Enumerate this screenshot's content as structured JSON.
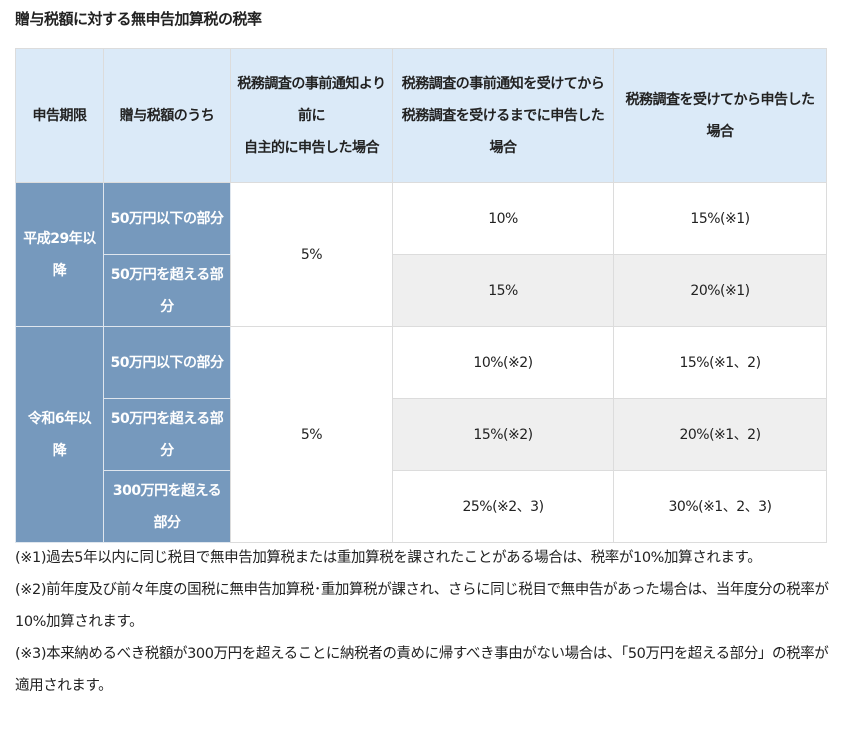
{
  "title": "贈与税額に対する無申告加算税の税率",
  "table": {
    "headers": [
      "申告期限",
      "贈与税額のうち",
      "税務調査の事前通知より前に\n自主的に申告した場合",
      "税務調査の事前通知を受けてから\n税務調査を受けるまでに申告した場合",
      "税務調査を受けてから申告した場合"
    ],
    "groups": [
      {
        "period": "平成29年以降",
        "voluntary": "5%",
        "rows": [
          {
            "portion": "50万円以下の部分",
            "after_notice": "10%",
            "after_audit": "15%(※1)"
          },
          {
            "portion": "50万円を超える部分",
            "after_notice": "15%",
            "after_audit": "20%(※1)"
          }
        ]
      },
      {
        "period": "令和6年以降",
        "voluntary": "5%",
        "rows": [
          {
            "portion": "50万円以下の部分",
            "after_notice": "10%(※2)",
            "after_audit": "15%(※1、2)"
          },
          {
            "portion": "50万円を超える部分",
            "after_notice": "15%(※2)",
            "after_audit": "20%(※1、2)"
          },
          {
            "portion": "300万円を超える部分",
            "after_notice": "25%(※2、3)",
            "after_audit": "30%(※1、2、3)"
          }
        ]
      }
    ]
  },
  "notes": [
    "(※1)過去5年以内に同じ税目で無申告加算税または重加算税を課されたことがある場合は、税率が10%加算されます。",
    "(※2)前年度及び前々年度の国税に無申告加算税･重加算税が課され、さらに同じ税目で無申告があった場合は、当年度分の税率が10%加算されます。",
    "(※3)本来納めるべき税額が300万円を超えることに納税者の責めに帰すべき事由がない場合は、「50万円を超える部分」の税率が適用されます。"
  ],
  "colors": {
    "header_bg": "#dbeaf8",
    "row_header_bg": "#7699bd",
    "alt_row_bg": "#efefef"
  }
}
